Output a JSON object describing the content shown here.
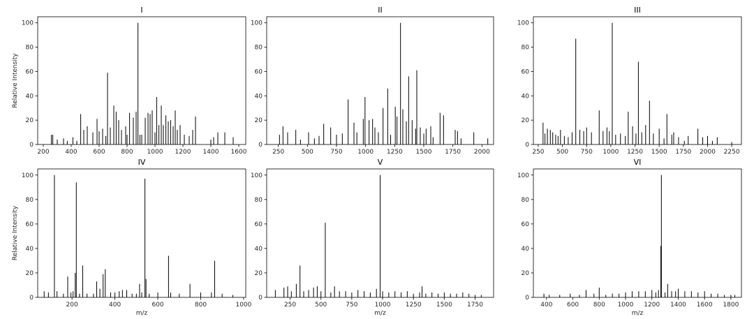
{
  "chart_data": [
    {
      "type": "bar",
      "title": "I",
      "xlabel": "",
      "ylabel": "Relative Intensity",
      "xlim": [
        160,
        1650
      ],
      "ylim": [
        0,
        105
      ],
      "xticks": [
        200,
        400,
        600,
        800,
        1000,
        1200,
        1400,
        1600
      ],
      "yticks": [
        0,
        20,
        40,
        60,
        80,
        100
      ],
      "grid": false,
      "peaks": {
        "x": [
          258,
          268,
          300,
          345,
          372,
          412,
          440,
          468,
          490,
          515,
          555,
          585,
          600,
          625,
          648,
          660,
          680,
          705,
          722,
          740,
          760,
          790,
          800,
          818,
          845,
          865,
          878,
          892,
          905,
          930,
          950,
          965,
          980,
          1000,
          1012,
          1028,
          1045,
          1060,
          1078,
          1095,
          1112,
          1130,
          1145,
          1160,
          1180,
          1210,
          1245,
          1270,
          1290,
          1400,
          1420,
          1450,
          1500,
          1560
        ],
        "y": [
          8,
          8,
          4,
          5,
          3,
          6,
          3,
          25,
          12,
          15,
          10,
          21,
          11,
          13,
          7,
          59,
          14,
          32,
          27,
          20,
          12,
          15,
          8,
          26,
          22,
          27,
          100,
          8,
          8,
          22,
          26,
          25,
          28,
          10,
          39,
          16,
          32,
          16,
          24,
          19,
          20,
          15,
          28,
          12,
          16,
          8,
          7,
          12,
          23,
          4,
          6,
          10,
          10,
          6
        ]
      }
    },
    {
      "type": "bar",
      "title": "II",
      "xlabel": "",
      "ylabel": "",
      "xlim": [
        150,
        2100
      ],
      "ylim": [
        0,
        105
      ],
      "xticks": [
        250,
        500,
        750,
        1000,
        1250,
        1500,
        1750,
        2000
      ],
      "yticks": [
        0,
        20,
        40,
        60,
        80,
        100
      ],
      "grid": false,
      "peaks": {
        "x": [
          260,
          290,
          330,
          400,
          440,
          510,
          560,
          600,
          640,
          700,
          750,
          800,
          850,
          900,
          925,
          980,
          995,
          1030,
          1060,
          1080,
          1110,
          1150,
          1190,
          1215,
          1255,
          1270,
          1300,
          1320,
          1350,
          1370,
          1400,
          1430,
          1440,
          1470,
          1500,
          1520,
          1560,
          1580,
          1640,
          1670,
          1770,
          1790,
          1820,
          1930,
          2050
        ],
        "y": [
          8,
          15,
          10,
          12,
          4,
          10,
          5,
          7,
          17,
          14,
          8,
          9,
          37,
          18,
          10,
          21,
          39,
          20,
          21,
          14,
          10,
          30,
          46,
          8,
          31,
          23,
          100,
          29,
          19,
          56,
          20,
          13,
          61,
          14,
          9,
          13,
          15,
          6,
          26,
          24,
          12,
          11,
          5,
          10,
          5
        ]
      }
    },
    {
      "type": "bar",
      "title": "III",
      "xlabel": "",
      "ylabel": "",
      "xlim": [
        200,
        2350
      ],
      "ylim": [
        0,
        105
      ],
      "xticks": [
        250,
        500,
        750,
        1000,
        1250,
        1500,
        1750,
        2000,
        2250
      ],
      "yticks": [
        0,
        20,
        40,
        60,
        80,
        100
      ],
      "grid": false,
      "peaks": {
        "x": [
          300,
          320,
          345,
          375,
          400,
          430,
          455,
          480,
          520,
          560,
          600,
          638,
          680,
          720,
          750,
          800,
          880,
          920,
          960,
          985,
          1015,
          1050,
          1100,
          1150,
          1180,
          1225,
          1260,
          1285,
          1320,
          1360,
          1400,
          1440,
          1500,
          1550,
          1580,
          1630,
          1650,
          1700,
          1760,
          1800,
          1900,
          1950,
          2000,
          2050,
          2100,
          2250
        ],
        "y": [
          18,
          9,
          13,
          12,
          10,
          8,
          7,
          12,
          7,
          6,
          10,
          87,
          12,
          11,
          14,
          10,
          28,
          11,
          14,
          11,
          100,
          8,
          9,
          7,
          27,
          15,
          9,
          68,
          10,
          16,
          36,
          9,
          13,
          5,
          25,
          8,
          10,
          6,
          3,
          7,
          13,
          6,
          7,
          3,
          6,
          2
        ]
      }
    },
    {
      "type": "bar",
      "title": "IV",
      "xlabel": "m/z",
      "ylabel": "Relative Intensity",
      "xlim": [
        40,
        1010
      ],
      "ylim": [
        0,
        105
      ],
      "xticks": [
        200,
        400,
        600,
        800,
        1000
      ],
      "yticks": [
        0,
        20,
        40,
        60,
        80,
        100
      ],
      "grid": false,
      "peaks": {
        "x": [
          70,
          90,
          118,
          130,
          160,
          180,
          195,
          205,
          215,
          220,
          235,
          250,
          270,
          300,
          315,
          330,
          345,
          355,
          380,
          400,
          420,
          435,
          455,
          480,
          500,
          515,
          525,
          540,
          545,
          560,
          600,
          650,
          660,
          700,
          750,
          800,
          850,
          865,
          900,
          950
        ],
        "y": [
          5,
          4,
          100,
          5,
          3,
          17,
          4,
          5,
          20,
          94,
          3,
          26,
          3,
          3,
          13,
          7,
          19,
          23,
          4,
          4,
          5,
          6,
          6,
          3,
          3,
          11,
          4,
          97,
          15,
          3,
          4,
          34,
          4,
          3,
          11,
          4,
          4,
          30,
          3,
          2
        ]
      }
    },
    {
      "type": "bar",
      "title": "V",
      "xlabel": "m/z",
      "ylabel": "",
      "xlim": [
        60,
        1900
      ],
      "ylim": [
        0,
        105
      ],
      "xticks": [
        250,
        500,
        750,
        1000,
        1250,
        1500,
        1750
      ],
      "yticks": [
        0,
        20,
        40,
        60,
        80,
        100
      ],
      "grid": false,
      "peaks": {
        "x": [
          130,
          200,
          230,
          260,
          300,
          330,
          360,
          400,
          440,
          470,
          500,
          535,
          580,
          610,
          650,
          700,
          750,
          800,
          850,
          900,
          950,
          980,
          1000,
          1050,
          1100,
          1150,
          1200,
          1250,
          1300,
          1320,
          1350,
          1400,
          1450,
          1500,
          1550,
          1600,
          1650,
          1700,
          1750,
          1800
        ],
        "y": [
          6,
          8,
          9,
          5,
          11,
          26,
          5,
          6,
          8,
          9,
          5,
          61,
          4,
          9,
          5,
          5,
          4,
          6,
          5,
          4,
          7,
          100,
          5,
          4,
          5,
          4,
          5,
          3,
          4,
          9,
          3,
          4,
          3,
          4,
          3,
          3,
          4,
          3,
          2,
          2
        ]
      }
    },
    {
      "type": "bar",
      "title": "VI",
      "xlabel": "m/z",
      "ylabel": "",
      "xlim": [
        300,
        1880
      ],
      "ylim": [
        0,
        105
      ],
      "xticks": [
        400,
        600,
        800,
        1000,
        1200,
        1400,
        1600,
        1800
      ],
      "yticks": [
        0,
        20,
        40,
        60,
        80,
        100
      ],
      "grid": false,
      "peaks": {
        "x": [
          380,
          420,
          500,
          580,
          650,
          700,
          760,
          800,
          850,
          900,
          950,
          1000,
          1050,
          1100,
          1150,
          1200,
          1230,
          1250,
          1268,
          1272,
          1300,
          1320,
          1350,
          1380,
          1400,
          1450,
          1500,
          1550,
          1600,
          1650,
          1700,
          1750,
          1800,
          1830
        ],
        "y": [
          3,
          2,
          2,
          3,
          2,
          6,
          3,
          8,
          2,
          3,
          3,
          4,
          5,
          5,
          5,
          6,
          4,
          6,
          42,
          100,
          4,
          11,
          5,
          5,
          7,
          5,
          5,
          4,
          5,
          3,
          3,
          2,
          2,
          2
        ]
      }
    }
  ]
}
